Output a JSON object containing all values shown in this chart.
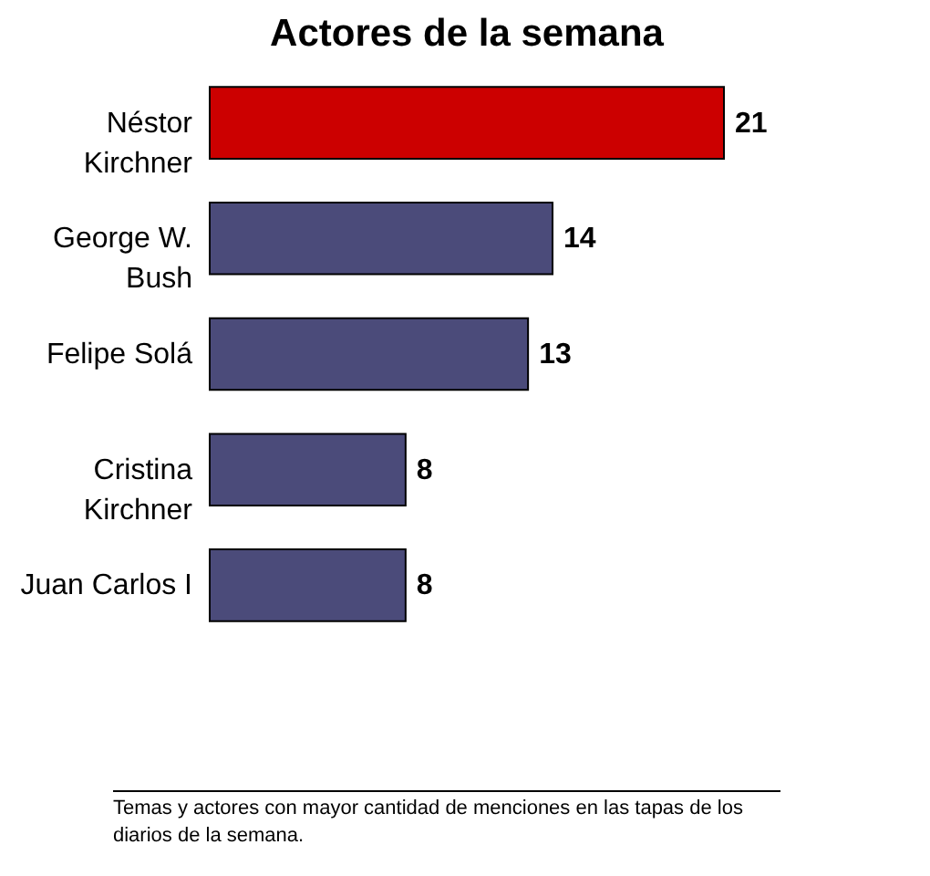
{
  "chart_data": {
    "type": "bar",
    "orientation": "horizontal",
    "title": "Actores de la semana",
    "categories": [
      "Néstor\nKirchner",
      "George W.\nBush",
      "Felipe Solá",
      "Cristina\nKirchner",
      "Juan Carlos I"
    ],
    "values": [
      21,
      14,
      13,
      8,
      8
    ],
    "colors": [
      "#cc0000",
      "#4b4b7a",
      "#4b4b7a",
      "#4b4b7a",
      "#4b4b7a"
    ],
    "data_labels": true,
    "annotations": [
      "Temas y actores con mayor cantidad de menciones en las tapas de los diarios de la semana."
    ]
  }
}
